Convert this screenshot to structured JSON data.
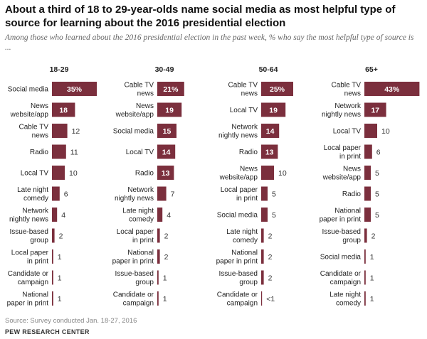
{
  "title": "About a third of 18 to 29-year-olds name social media as most helpful type of source for learning about the 2016 presidential election",
  "subtitle": "Among those who learned about the 2016 presidential election in the past week, % who say the most helpful type of source is ...",
  "source": "Source: Survey conducted Jan. 18-27, 2016",
  "brand": "PEW RESEARCH CENTER",
  "colors": {
    "bar": "#7b2f3d",
    "bar_text": "#ffffff",
    "value_outside": "#333333",
    "label": "#222222"
  },
  "chart_data": [
    {
      "type": "bar",
      "panel": "18-29",
      "orientation": "horizontal",
      "categories": [
        [
          "Social media"
        ],
        [
          "News",
          "website/app"
        ],
        [
          "Cable TV",
          "news"
        ],
        [
          "Radio"
        ],
        [
          "Local TV"
        ],
        [
          "Late night",
          "comedy"
        ],
        [
          "Network",
          "nightly news"
        ],
        [
          "Issue-based",
          "group"
        ],
        [
          "Local paper",
          "in print"
        ],
        [
          "Candidate or",
          "campaign"
        ],
        [
          "National",
          "paper in print"
        ]
      ],
      "values": [
        35,
        18,
        12,
        11,
        10,
        6,
        4,
        2,
        1,
        1,
        1
      ],
      "value_labels": [
        "35%",
        "18",
        "12",
        "11",
        "10",
        "6",
        "4",
        "2",
        "1",
        "1",
        "1"
      ]
    },
    {
      "type": "bar",
      "panel": "30-49",
      "orientation": "horizontal",
      "categories": [
        [
          "Cable TV",
          "news"
        ],
        [
          "News",
          "website/app"
        ],
        [
          "Social media"
        ],
        [
          "Local TV"
        ],
        [
          "Radio"
        ],
        [
          "Network",
          "nightly news"
        ],
        [
          "Late night",
          "comedy"
        ],
        [
          "Local paper",
          "in print"
        ],
        [
          "National",
          "paper in print"
        ],
        [
          "Issue-based",
          "group"
        ],
        [
          "Candidate or",
          "campaign"
        ]
      ],
      "values": [
        21,
        19,
        15,
        14,
        13,
        7,
        4,
        2,
        2,
        1,
        1
      ],
      "value_labels": [
        "21%",
        "19",
        "15",
        "14",
        "13",
        "7",
        "4",
        "2",
        "2",
        "1",
        "1"
      ]
    },
    {
      "type": "bar",
      "panel": "50-64",
      "orientation": "horizontal",
      "categories": [
        [
          "Cable TV",
          "news"
        ],
        [
          "Local TV"
        ],
        [
          "Network",
          "nightly news"
        ],
        [
          "Radio"
        ],
        [
          "News",
          "website/app"
        ],
        [
          "Local paper",
          "in print"
        ],
        [
          "Social media"
        ],
        [
          "Late night",
          "comedy"
        ],
        [
          "National",
          "paper in print"
        ],
        [
          "Issue-based",
          "group"
        ],
        [
          "Candidate or",
          "campaign"
        ]
      ],
      "values": [
        25,
        19,
        14,
        13,
        10,
        5,
        5,
        2,
        2,
        2,
        0.5
      ],
      "value_labels": [
        "25%",
        "19",
        "14",
        "13",
        "10",
        "5",
        "5",
        "2",
        "2",
        "2",
        "<1"
      ]
    },
    {
      "type": "bar",
      "panel": "65+",
      "orientation": "horizontal",
      "categories": [
        [
          "Cable TV",
          "news"
        ],
        [
          "Network",
          "nightly news"
        ],
        [
          "Local TV"
        ],
        [
          "Local paper",
          "in print"
        ],
        [
          "News",
          "website/app"
        ],
        [
          "Radio"
        ],
        [
          "National",
          "paper in print"
        ],
        [
          "Issue-based",
          "group"
        ],
        [
          "Social media"
        ],
        [
          "Candidate or",
          "campaign"
        ],
        [
          "Late night",
          "comedy"
        ]
      ],
      "values": [
        43,
        17,
        10,
        6,
        5,
        5,
        5,
        2,
        1,
        1,
        1
      ],
      "value_labels": [
        "43%",
        "17",
        "10",
        "6",
        "5",
        "5",
        "5",
        "2",
        "1",
        "1",
        "1"
      ]
    }
  ]
}
